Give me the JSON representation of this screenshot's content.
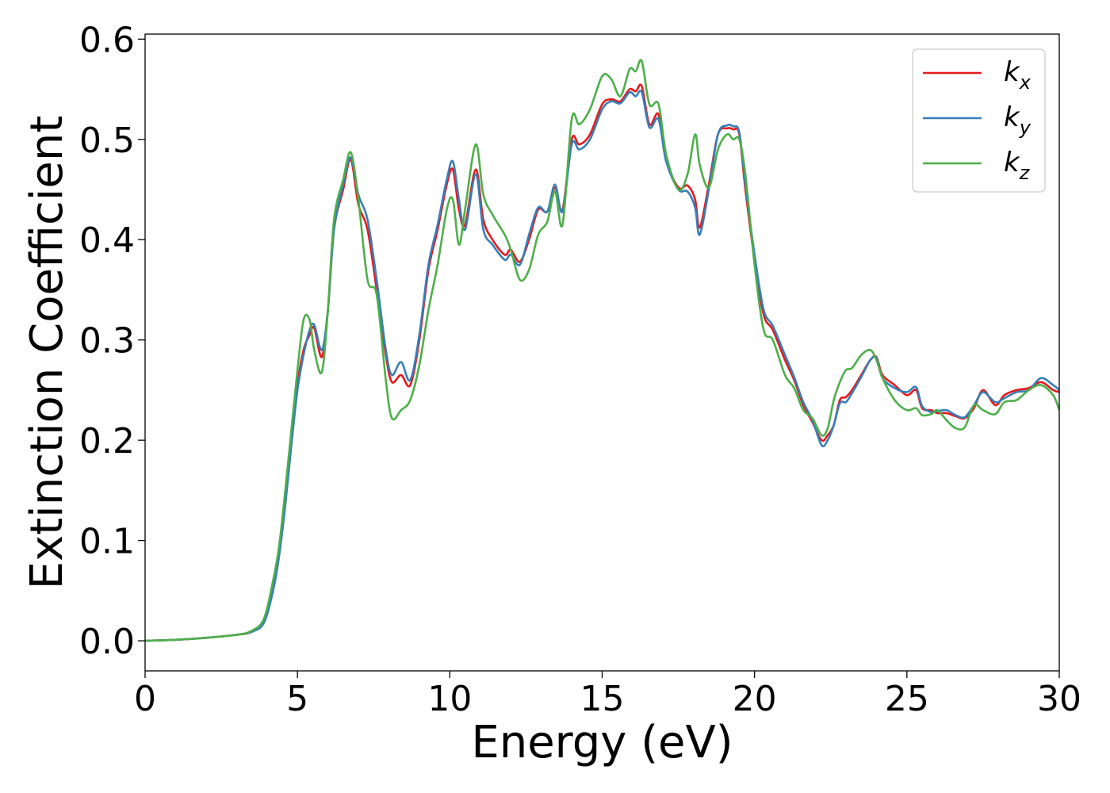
{
  "chart_data": {
    "type": "line",
    "xlabel": "Energy (eV)",
    "ylabel": "Extinction Coefficient",
    "xlim": [
      0,
      30
    ],
    "ylim": [
      -0.03,
      0.605
    ],
    "xticks": [
      "0",
      "5",
      "10",
      "15",
      "20",
      "25",
      "30"
    ],
    "yticks": [
      "0.0",
      "0.1",
      "0.2",
      "0.3",
      "0.4",
      "0.5",
      "0.6"
    ],
    "grid": false,
    "legend_position": "top-right",
    "series": [
      {
        "name": "k",
        "subscript": "x",
        "color": "#e41a1c",
        "x": [
          0,
          1,
          2,
          3,
          3.5,
          3.9,
          4.2,
          4.4,
          4.6,
          4.8,
          5.0,
          5.2,
          5.4,
          5.55,
          5.8,
          6.0,
          6.2,
          6.5,
          6.75,
          7.0,
          7.3,
          7.6,
          7.9,
          8.1,
          8.4,
          8.7,
          9.0,
          9.3,
          9.6,
          9.9,
          10.1,
          10.3,
          10.5,
          10.85,
          11.1,
          11.4,
          11.8,
          12.0,
          12.3,
          12.6,
          12.9,
          13.2,
          13.45,
          13.7,
          14.0,
          14.25,
          14.6,
          15.0,
          15.3,
          15.6,
          15.9,
          16.1,
          16.3,
          16.55,
          16.85,
          17.1,
          17.5,
          17.8,
          18.05,
          18.2,
          18.5,
          18.8,
          19.1,
          19.3,
          19.5,
          19.7,
          20.0,
          20.3,
          20.6,
          21.0,
          21.3,
          21.6,
          21.9,
          22.2,
          22.4,
          22.6,
          22.8,
          23.0,
          23.2,
          23.5,
          23.8,
          24.0,
          24.2,
          24.6,
          25.0,
          25.3,
          25.5,
          25.8,
          26.0,
          26.3,
          26.6,
          26.9,
          27.2,
          27.5,
          27.9,
          28.2,
          28.6,
          29.0,
          29.4,
          29.8,
          30.0
        ],
        "values": [
          0.0,
          0.001,
          0.003,
          0.006,
          0.009,
          0.02,
          0.055,
          0.09,
          0.14,
          0.2,
          0.255,
          0.29,
          0.305,
          0.312,
          0.283,
          0.33,
          0.41,
          0.45,
          0.48,
          0.435,
          0.41,
          0.35,
          0.285,
          0.258,
          0.265,
          0.255,
          0.3,
          0.37,
          0.41,
          0.455,
          0.47,
          0.43,
          0.415,
          0.47,
          0.42,
          0.4,
          0.385,
          0.39,
          0.378,
          0.4,
          0.43,
          0.428,
          0.452,
          0.43,
          0.5,
          0.495,
          0.505,
          0.535,
          0.54,
          0.538,
          0.55,
          0.548,
          0.553,
          0.515,
          0.525,
          0.48,
          0.452,
          0.454,
          0.44,
          0.412,
          0.455,
          0.505,
          0.511,
          0.51,
          0.505,
          0.45,
          0.38,
          0.325,
          0.31,
          0.28,
          0.26,
          0.235,
          0.218,
          0.2,
          0.205,
          0.215,
          0.24,
          0.243,
          0.25,
          0.265,
          0.28,
          0.283,
          0.265,
          0.255,
          0.245,
          0.25,
          0.232,
          0.23,
          0.227,
          0.227,
          0.224,
          0.222,
          0.232,
          0.25,
          0.235,
          0.245,
          0.25,
          0.252,
          0.258,
          0.25,
          0.248
        ]
      },
      {
        "name": "k",
        "subscript": "y",
        "color": "#377eb8",
        "x": [
          0,
          1,
          2,
          3,
          3.5,
          3.9,
          4.2,
          4.4,
          4.6,
          4.8,
          5.0,
          5.2,
          5.4,
          5.55,
          5.8,
          6.0,
          6.2,
          6.5,
          6.75,
          7.0,
          7.3,
          7.6,
          7.9,
          8.1,
          8.4,
          8.7,
          9.0,
          9.3,
          9.6,
          9.9,
          10.1,
          10.3,
          10.5,
          10.85,
          11.1,
          11.4,
          11.8,
          12.0,
          12.3,
          12.6,
          12.9,
          13.2,
          13.45,
          13.7,
          14.0,
          14.25,
          14.6,
          15.0,
          15.3,
          15.6,
          15.9,
          16.1,
          16.3,
          16.55,
          16.85,
          17.1,
          17.5,
          17.8,
          18.05,
          18.2,
          18.5,
          18.8,
          19.1,
          19.3,
          19.5,
          19.7,
          20.0,
          20.3,
          20.6,
          21.0,
          21.3,
          21.6,
          21.9,
          22.2,
          22.4,
          22.6,
          22.8,
          23.0,
          23.2,
          23.5,
          23.8,
          24.0,
          24.2,
          24.6,
          25.0,
          25.3,
          25.5,
          25.8,
          26.0,
          26.3,
          26.6,
          26.9,
          27.2,
          27.5,
          27.9,
          28.2,
          28.6,
          29.0,
          29.4,
          29.8,
          30.0
        ],
        "values": [
          0.0,
          0.001,
          0.003,
          0.006,
          0.009,
          0.018,
          0.05,
          0.085,
          0.135,
          0.195,
          0.25,
          0.285,
          0.31,
          0.315,
          0.29,
          0.33,
          0.41,
          0.455,
          0.482,
          0.445,
          0.42,
          0.36,
          0.29,
          0.265,
          0.278,
          0.26,
          0.305,
          0.375,
          0.415,
          0.46,
          0.478,
          0.44,
          0.41,
          0.465,
          0.41,
          0.395,
          0.38,
          0.385,
          0.375,
          0.405,
          0.432,
          0.428,
          0.455,
          0.428,
          0.495,
          0.49,
          0.5,
          0.53,
          0.538,
          0.536,
          0.547,
          0.543,
          0.547,
          0.512,
          0.52,
          0.478,
          0.45,
          0.448,
          0.432,
          0.405,
          0.45,
          0.505,
          0.514,
          0.513,
          0.507,
          0.455,
          0.385,
          0.33,
          0.314,
          0.285,
          0.263,
          0.238,
          0.22,
          0.195,
          0.2,
          0.215,
          0.237,
          0.238,
          0.247,
          0.263,
          0.28,
          0.282,
          0.262,
          0.252,
          0.248,
          0.253,
          0.234,
          0.228,
          0.229,
          0.23,
          0.225,
          0.223,
          0.235,
          0.248,
          0.238,
          0.242,
          0.248,
          0.25,
          0.262,
          0.255,
          0.25
        ]
      },
      {
        "name": "k",
        "subscript": "z",
        "color": "#4daf4a",
        "x": [
          0,
          1,
          2,
          3,
          3.5,
          3.9,
          4.2,
          4.4,
          4.6,
          4.8,
          5.0,
          5.2,
          5.4,
          5.55,
          5.8,
          6.0,
          6.2,
          6.5,
          6.75,
          7.0,
          7.3,
          7.6,
          7.9,
          8.1,
          8.4,
          8.7,
          9.0,
          9.3,
          9.6,
          9.9,
          10.1,
          10.3,
          10.5,
          10.85,
          11.1,
          11.4,
          11.8,
          12.0,
          12.3,
          12.6,
          12.9,
          13.2,
          13.45,
          13.7,
          14.0,
          14.25,
          14.6,
          15.0,
          15.3,
          15.6,
          15.9,
          16.1,
          16.3,
          16.55,
          16.85,
          17.1,
          17.5,
          17.8,
          18.05,
          18.2,
          18.5,
          18.8,
          19.1,
          19.3,
          19.5,
          19.7,
          20.0,
          20.3,
          20.6,
          21.0,
          21.3,
          21.6,
          21.9,
          22.2,
          22.4,
          22.6,
          22.8,
          23.0,
          23.2,
          23.5,
          23.8,
          24.0,
          24.2,
          24.6,
          25.0,
          25.3,
          25.5,
          25.8,
          26.0,
          26.3,
          26.6,
          26.9,
          27.2,
          27.5,
          27.9,
          28.2,
          28.6,
          29.0,
          29.4,
          29.8,
          30.0
        ],
        "values": [
          0.0,
          0.001,
          0.003,
          0.006,
          0.01,
          0.022,
          0.06,
          0.095,
          0.15,
          0.21,
          0.27,
          0.32,
          0.32,
          0.29,
          0.268,
          0.33,
          0.42,
          0.46,
          0.487,
          0.44,
          0.36,
          0.345,
          0.26,
          0.222,
          0.23,
          0.24,
          0.275,
          0.33,
          0.375,
          0.43,
          0.44,
          0.395,
          0.43,
          0.495,
          0.445,
          0.425,
          0.405,
          0.39,
          0.36,
          0.37,
          0.405,
          0.418,
          0.448,
          0.415,
          0.52,
          0.515,
          0.53,
          0.563,
          0.56,
          0.543,
          0.57,
          0.568,
          0.578,
          0.535,
          0.535,
          0.485,
          0.45,
          0.465,
          0.505,
          0.475,
          0.452,
          0.49,
          0.505,
          0.5,
          0.5,
          0.465,
          0.375,
          0.31,
          0.3,
          0.265,
          0.252,
          0.23,
          0.222,
          0.205,
          0.212,
          0.24,
          0.258,
          0.27,
          0.272,
          0.285,
          0.29,
          0.28,
          0.262,
          0.24,
          0.23,
          0.232,
          0.225,
          0.226,
          0.23,
          0.22,
          0.212,
          0.213,
          0.235,
          0.23,
          0.226,
          0.238,
          0.24,
          0.25,
          0.255,
          0.245,
          0.23
        ]
      }
    ]
  }
}
